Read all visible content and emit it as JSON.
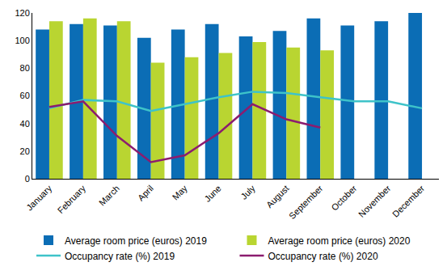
{
  "chart_data": {
    "type": "bar",
    "categories": [
      "January",
      "February",
      "March",
      "April",
      "May",
      "June",
      "July",
      "August",
      "September",
      "October",
      "November",
      "December"
    ],
    "series": [
      {
        "name": "Average room price (euros) 2019",
        "type": "bar",
        "color": "#0b6db5",
        "values": [
          108,
          112,
          111,
          102,
          108,
          112,
          103,
          107,
          116,
          111,
          114,
          120
        ]
      },
      {
        "name": "Average room price (euros) 2020",
        "type": "bar",
        "color": "#b9d531",
        "values": [
          114,
          116,
          114,
          84,
          88,
          91,
          99,
          95,
          93,
          null,
          null,
          null
        ]
      },
      {
        "name": "Occupancy rate (%) 2019",
        "type": "line",
        "color": "#3ec3c9",
        "values": [
          51,
          57,
          56,
          49,
          54,
          59,
          63,
          62,
          59,
          56,
          56,
          51
        ]
      },
      {
        "name": "Occupancy rate (%) 2020",
        "type": "line",
        "color": "#8c1c6f",
        "values": [
          52,
          56,
          31,
          12,
          17,
          33,
          54,
          43,
          37,
          null,
          null,
          null
        ]
      }
    ],
    "ylim": [
      0,
      120
    ],
    "yticks": [
      0,
      20,
      40,
      60,
      80,
      100,
      120
    ],
    "grid": false,
    "legend": "bottom"
  }
}
